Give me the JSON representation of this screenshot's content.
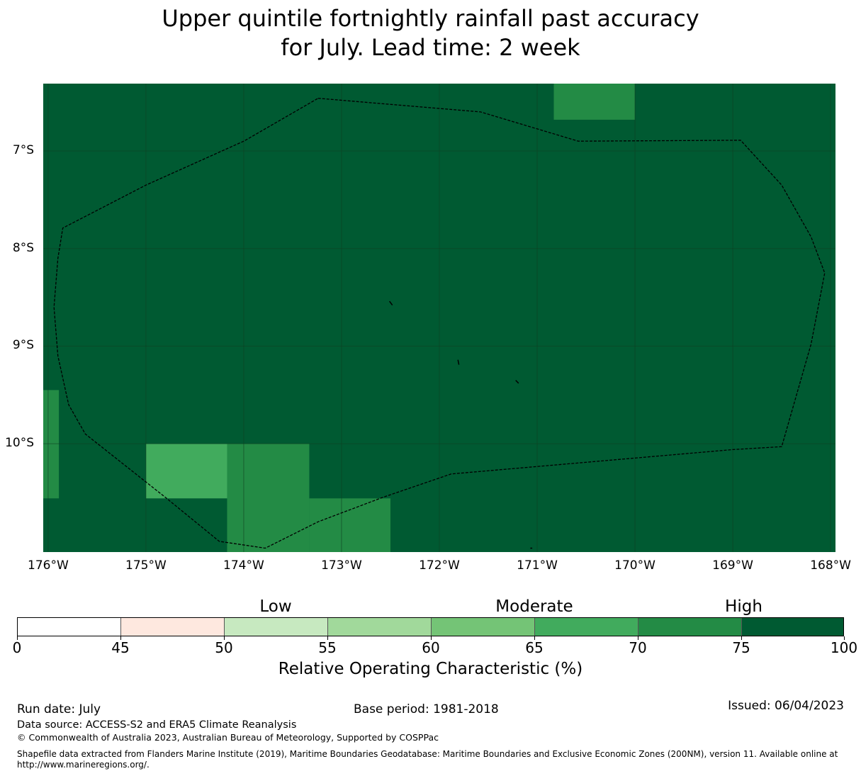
{
  "title": {
    "line1": "Upper quintile fortnightly rainfall past accuracy",
    "line2": "for July. Lead time: 2 week"
  },
  "map": {
    "lon_range": [
      -176.05,
      -167.95
    ],
    "lat_range": [
      -11.11,
      -6.31
    ],
    "background_color": "#005a32",
    "grid_color": "#0f3f22",
    "boundary_color": "#000000",
    "y_ticks": [
      {
        "lat": -7,
        "label": "7°S"
      },
      {
        "lat": -8,
        "label": "8°S"
      },
      {
        "lat": -9,
        "label": "9°S"
      },
      {
        "lat": -10,
        "label": "10°S"
      }
    ],
    "x_ticks": [
      {
        "lon": -176,
        "label": "176°W"
      },
      {
        "lon": -175,
        "label": "175°W"
      },
      {
        "lon": -174,
        "label": "174°W"
      },
      {
        "lon": -173,
        "label": "173°W"
      },
      {
        "lon": -172,
        "label": "172°W"
      },
      {
        "lon": -171,
        "label": "171°W"
      },
      {
        "lon": -170,
        "label": "170°W"
      },
      {
        "lon": -169,
        "label": "169°W"
      },
      {
        "lon": -168,
        "label": "168°W"
      }
    ],
    "cells": [
      {
        "lon0": -170.83,
        "lon1": -170.0,
        "lat0": -6.31,
        "lat1": -6.68,
        "color": "#238b45",
        "range": "70-75"
      },
      {
        "lon0": -176.05,
        "lon1": -175.89,
        "lat0": -9.45,
        "lat1": -10.56,
        "color": "#238b45",
        "range": "70-75"
      },
      {
        "lon0": -175.0,
        "lon1": -174.17,
        "lat0": -10.0,
        "lat1": -10.56,
        "color": "#41ab5d",
        "range": "65-70"
      },
      {
        "lon0": -174.17,
        "lon1": -173.33,
        "lat0": -10.0,
        "lat1": -11.11,
        "color": "#238b45",
        "range": "70-75"
      },
      {
        "lon0": -173.33,
        "lon1": -172.5,
        "lat0": -10.56,
        "lat1": -11.11,
        "color": "#238b45",
        "range": "70-75"
      }
    ],
    "eez_boundary": [
      [
        -173.24,
        -6.46
      ],
      [
        -171.58,
        -6.6
      ],
      [
        -170.58,
        -6.9
      ],
      [
        -168.92,
        -6.89
      ],
      [
        -168.5,
        -7.35
      ],
      [
        -168.2,
        -7.88
      ],
      [
        -168.06,
        -8.25
      ],
      [
        -168.2,
        -8.98
      ],
      [
        -168.5,
        -10.03
      ],
      [
        -169.0,
        -10.06
      ],
      [
        -171.88,
        -10.31
      ],
      [
        -172.58,
        -10.55
      ],
      [
        -173.24,
        -10.8
      ],
      [
        -173.78,
        -11.07
      ],
      [
        -174.25,
        -11.0
      ],
      [
        -174.8,
        -10.55
      ],
      [
        -175.62,
        -9.9
      ],
      [
        -175.79,
        -9.6
      ],
      [
        -175.9,
        -9.1
      ],
      [
        -175.94,
        -8.6
      ],
      [
        -175.9,
        -8.1
      ],
      [
        -175.85,
        -7.79
      ],
      [
        -175.0,
        -7.35
      ],
      [
        -174.0,
        -6.9
      ],
      [
        -173.24,
        -6.46
      ]
    ],
    "islands": [
      [
        [
          -172.51,
          -8.54
        ],
        [
          -172.48,
          -8.58
        ]
      ],
      [
        [
          -171.81,
          -9.14
        ],
        [
          -171.8,
          -9.19
        ]
      ],
      [
        [
          -171.22,
          -9.35
        ],
        [
          -171.19,
          -9.38
        ]
      ],
      [
        [
          -171.07,
          -11.07
        ],
        [
          -171.05,
          -11.07
        ]
      ]
    ]
  },
  "colorbar": {
    "category_labels": [
      {
        "label": "Low",
        "at": 52.5
      },
      {
        "label": "Moderate",
        "at": 65
      },
      {
        "label": "High",
        "at": 75.6
      }
    ],
    "segments": [
      {
        "from": 0,
        "to": 45,
        "color": "#ffffff"
      },
      {
        "from": 45,
        "to": 50,
        "color": "#fee8df"
      },
      {
        "from": 50,
        "to": 55,
        "color": "#c7e9c0"
      },
      {
        "from": 55,
        "to": 60,
        "color": "#a1d99b"
      },
      {
        "from": 60,
        "to": 65,
        "color": "#74c476"
      },
      {
        "from": 65,
        "to": 70,
        "color": "#41ab5d"
      },
      {
        "from": 70,
        "to": 75,
        "color": "#238b45"
      },
      {
        "from": 75,
        "to": 100,
        "color": "#005a32"
      }
    ],
    "ticks": [
      "0",
      "45",
      "50",
      "55",
      "60",
      "65",
      "70",
      "75",
      "100"
    ],
    "title": "Relative Operating Characteristic (%)"
  },
  "footer": {
    "run_date": "Run date: July",
    "base_period": "Base period: 1981-2018",
    "issued": "Issued: 06/04/2023",
    "data_source": "Data source: ACCESS-S2 and ERA5 Climate Reanalysis",
    "copyright": "© Commonwealth of Australia 2023, Australian Bureau of Meteorology, Supported by COSPPac",
    "shapefile_line1": "Shapefile data extracted from Flanders Marine Institute (2019), Maritime Boundaries Geodatabase: Maritime Boundaries and Exclusive Economic Zones (200NM), version 11. Available online at",
    "shapefile_line2": "http://www.marineregions.org/."
  }
}
